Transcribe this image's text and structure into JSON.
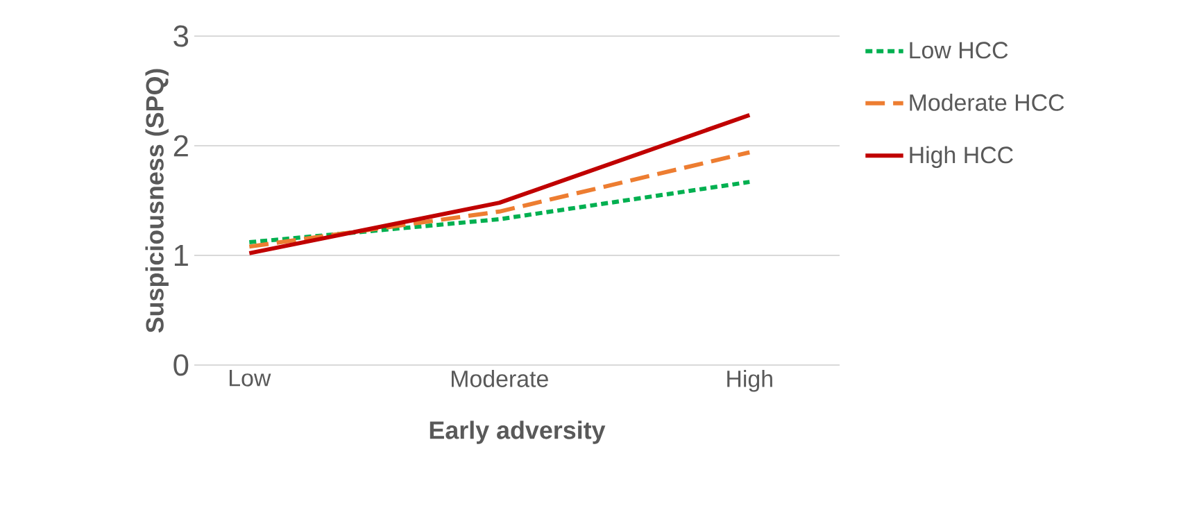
{
  "chart_data": {
    "type": "line",
    "xlabel": "Early adversity",
    "ylabel": "Suspiciousness (SPQ)",
    "categories": [
      "Low",
      "Moderate",
      "High"
    ],
    "series": [
      {
        "name": "Low HCC",
        "color": "#00b050",
        "line_style": "dotted",
        "values": [
          1.12,
          1.33,
          1.67
        ]
      },
      {
        "name": "Moderate HCC",
        "color": "#ed7d31",
        "line_style": "dashed",
        "values": [
          1.08,
          1.4,
          1.94
        ]
      },
      {
        "name": "High HCC",
        "color": "#c00000",
        "line_style": "solid",
        "values": [
          1.02,
          1.48,
          2.28
        ]
      }
    ],
    "ylim": [
      0,
      3
    ],
    "yticks": [
      0,
      1,
      2,
      3
    ],
    "grid": "y",
    "legend": "right",
    "marker": "none"
  }
}
